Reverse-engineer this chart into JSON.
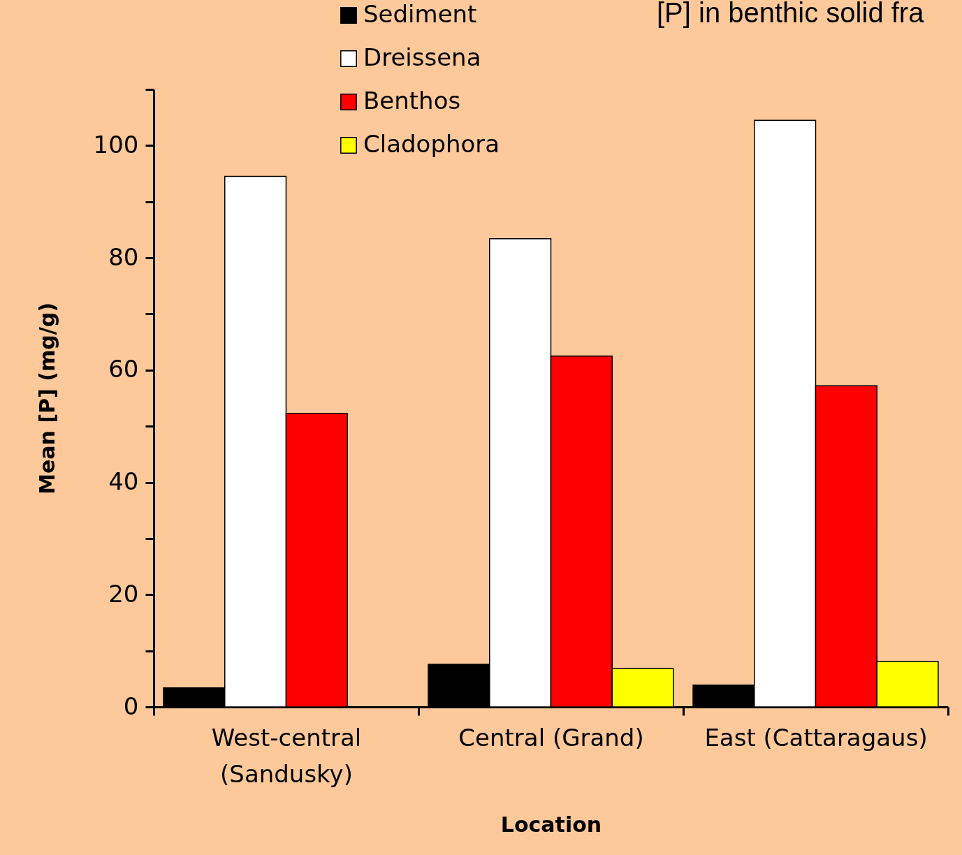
{
  "chart_data": {
    "type": "bar",
    "title": "[P] in benthic solid fra",
    "xlabel": "Location",
    "ylabel": "Mean [P]  (mg/g)",
    "categories": [
      "West-central (Sandusky)",
      "Central (Grand)",
      "East (Cattaragaus)"
    ],
    "series": [
      {
        "name": "Sediment",
        "color": "#000000",
        "values": [
          3.4,
          7.6,
          3.9
        ]
      },
      {
        "name": "Dreissena",
        "color": "#ffffff",
        "values": [
          94.5,
          83.4,
          104.5
        ]
      },
      {
        "name": "Benthos",
        "color": "#ff0000",
        "values": [
          52.3,
          62.5,
          57.2
        ]
      },
      {
        "name": "Cladophora",
        "color": "#ffff00",
        "values": [
          null,
          6.8,
          8.1
        ]
      }
    ],
    "ylim": [
      0,
      110
    ],
    "yticks": [
      0,
      {
        "value": 10,
        "label": null
      },
      20,
      {
        "value": 30,
        "label": null
      },
      40,
      {
        "value": 50,
        "label": null
      },
      60,
      {
        "value": 70,
        "label": null
      },
      80,
      {
        "value": 90,
        "label": null
      },
      100,
      {
        "value": 110,
        "label": null
      }
    ],
    "grid": false,
    "legend": "top"
  }
}
